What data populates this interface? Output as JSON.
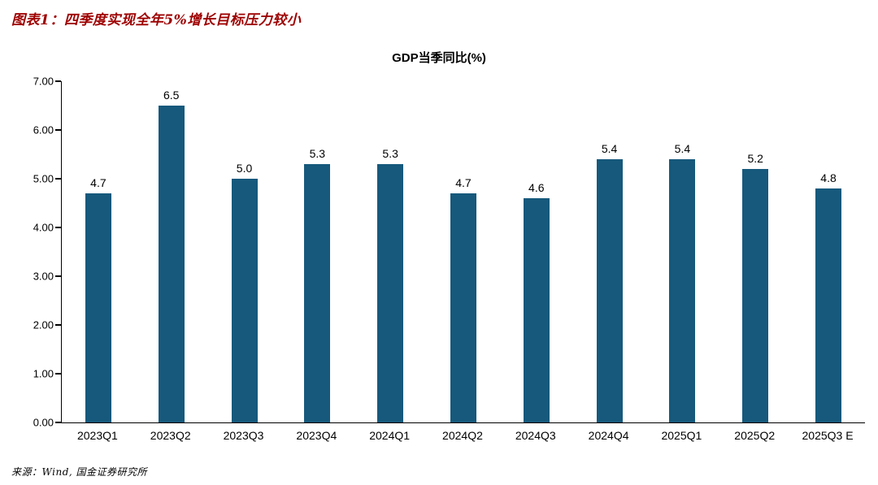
{
  "figure": {
    "title": "图表1：四季度实现全年5%增长目标压力较小",
    "title_color": "#9E0000",
    "source": "来源：Wind, 国金证券研究所"
  },
  "chart_data": {
    "type": "bar",
    "title": "GDP当季同比(%)",
    "categories": [
      "2023Q1",
      "2023Q2",
      "2023Q3",
      "2023Q4",
      "2024Q1",
      "2024Q2",
      "2024Q3",
      "2024Q4",
      "2025Q1",
      "2025Q2",
      "2025Q3 E"
    ],
    "values": [
      4.7,
      6.5,
      5.0,
      5.3,
      5.3,
      4.7,
      4.6,
      5.4,
      5.4,
      5.2,
      4.8
    ],
    "value_decimals": 1,
    "xlabel": "",
    "ylabel": "",
    "ylim": [
      0,
      7
    ],
    "ytick_step": 1,
    "ytick_labels": [
      "0.00",
      "1.00",
      "2.00",
      "3.00",
      "4.00",
      "5.00",
      "6.00",
      "7.00"
    ],
    "bar_color": "#16597C",
    "grid": false,
    "legend_position": "none",
    "data_labels": true
  }
}
